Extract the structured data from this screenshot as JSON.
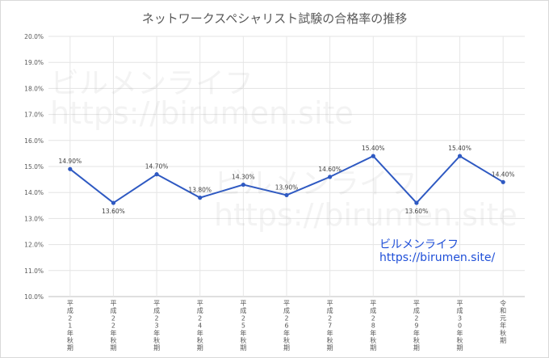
{
  "chart_data": {
    "type": "line",
    "title": "ネットワークスペシャリスト試験の合格率の推移",
    "categories": [
      "平成21年秋期",
      "平成22年秋期",
      "平成23年秋期",
      "平成24年秋期",
      "平成25年秋期",
      "平成26年秋期",
      "平成27年秋期",
      "平成28年秋期",
      "平成29年秋期",
      "平成30年秋期",
      "令和元年秋期"
    ],
    "tick_labels_vertical": [
      "平\n成\n2\n1\n年\n秋\n期",
      "平\n成\n2\n2\n年\n秋\n期",
      "平\n成\n2\n3\n年\n秋\n期",
      "平\n成\n2\n4\n年\n秋\n期",
      "平\n成\n2\n5\n年\n秋\n期",
      "平\n成\n2\n6\n年\n秋\n期",
      "平\n成\n2\n7\n年\n秋\n期",
      "平\n成\n2\n8\n年\n秋\n期",
      "平\n成\n2\n9\n年\n秋\n期",
      "平\n成\n3\n0\n年\n秋\n期",
      "令\n和\n元\n年\n秋\n期"
    ],
    "values": [
      14.9,
      13.6,
      14.7,
      13.8,
      14.3,
      13.9,
      14.6,
      15.4,
      13.6,
      15.4,
      14.4
    ],
    "data_labels": [
      "14.90%",
      "13.60%",
      "14.70%",
      "13.80%",
      "14.30%",
      "13.90%",
      "14.60%",
      "15.40%",
      "13.60%",
      "15.40%",
      "14.40%"
    ],
    "label_position": [
      "above",
      "below",
      "above",
      "above",
      "above",
      "above",
      "above",
      "above",
      "below",
      "above",
      "above"
    ],
    "ylim": [
      10.0,
      20.0
    ],
    "ytick_labels": [
      "10.0%",
      "11.0%",
      "12.0%",
      "13.0%",
      "14.0%",
      "15.0%",
      "16.0%",
      "17.0%",
      "18.0%",
      "19.0%",
      "20.0%"
    ],
    "xlabel": "",
    "ylabel": "",
    "grid": true,
    "line_color": "#2e59c2"
  },
  "watermark": {
    "name": "ビルメンライフ",
    "url": "https://birumen.site"
  },
  "brand": {
    "name": "ビルメンライフ",
    "url": "https://birumen.site/",
    "color": "#1f4fd8"
  }
}
